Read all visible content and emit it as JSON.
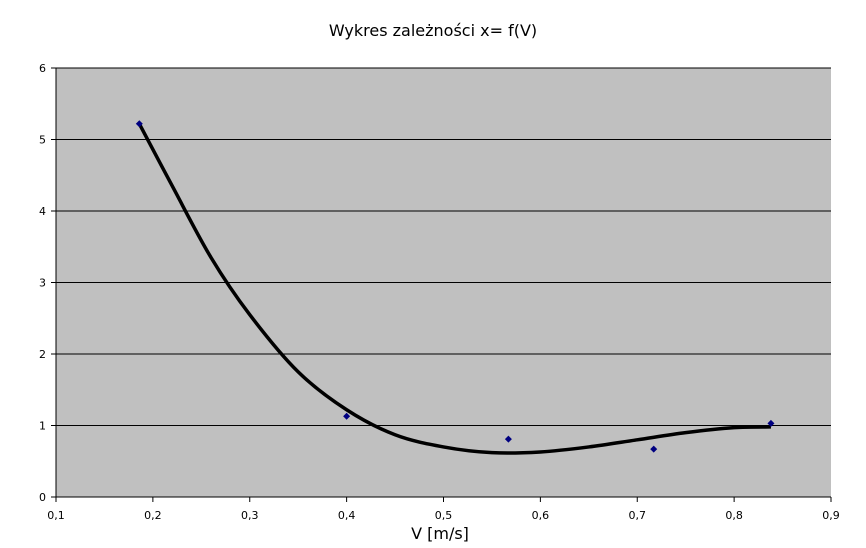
{
  "chart_data": {
    "type": "scatter",
    "title": "Wykres zależności x= f(V)",
    "xlabel": "V [m/s]",
    "ylabel": "",
    "xlim": [
      0.1,
      0.9
    ],
    "ylim": [
      0,
      6
    ],
    "x_ticks": [
      "0,1",
      "0,2",
      "0,3",
      "0,4",
      "0,5",
      "0,6",
      "0,7",
      "0,8",
      "0,9"
    ],
    "y_ticks": [
      "0",
      "1",
      "2",
      "3",
      "4",
      "5",
      "6"
    ],
    "grid": "horizontal",
    "legend": "none",
    "plot_background": "#C0C0C0",
    "marker_color": "#000080",
    "trendline_color": "#000000",
    "series": [
      {
        "kind": "points",
        "x": [
          0.186,
          0.4,
          0.567,
          0.717,
          0.838
        ],
        "y": [
          5.22,
          1.13,
          0.81,
          0.67,
          1.03
        ]
      },
      {
        "kind": "trendline",
        "x": [
          0.186,
          0.22,
          0.26,
          0.3,
          0.35,
          0.4,
          0.45,
          0.5,
          0.55,
          0.6,
          0.65,
          0.7,
          0.75,
          0.8,
          0.838
        ],
        "y": [
          5.22,
          4.35,
          3.35,
          2.55,
          1.75,
          1.22,
          0.87,
          0.7,
          0.62,
          0.63,
          0.7,
          0.8,
          0.9,
          0.97,
          0.98
        ]
      }
    ]
  }
}
